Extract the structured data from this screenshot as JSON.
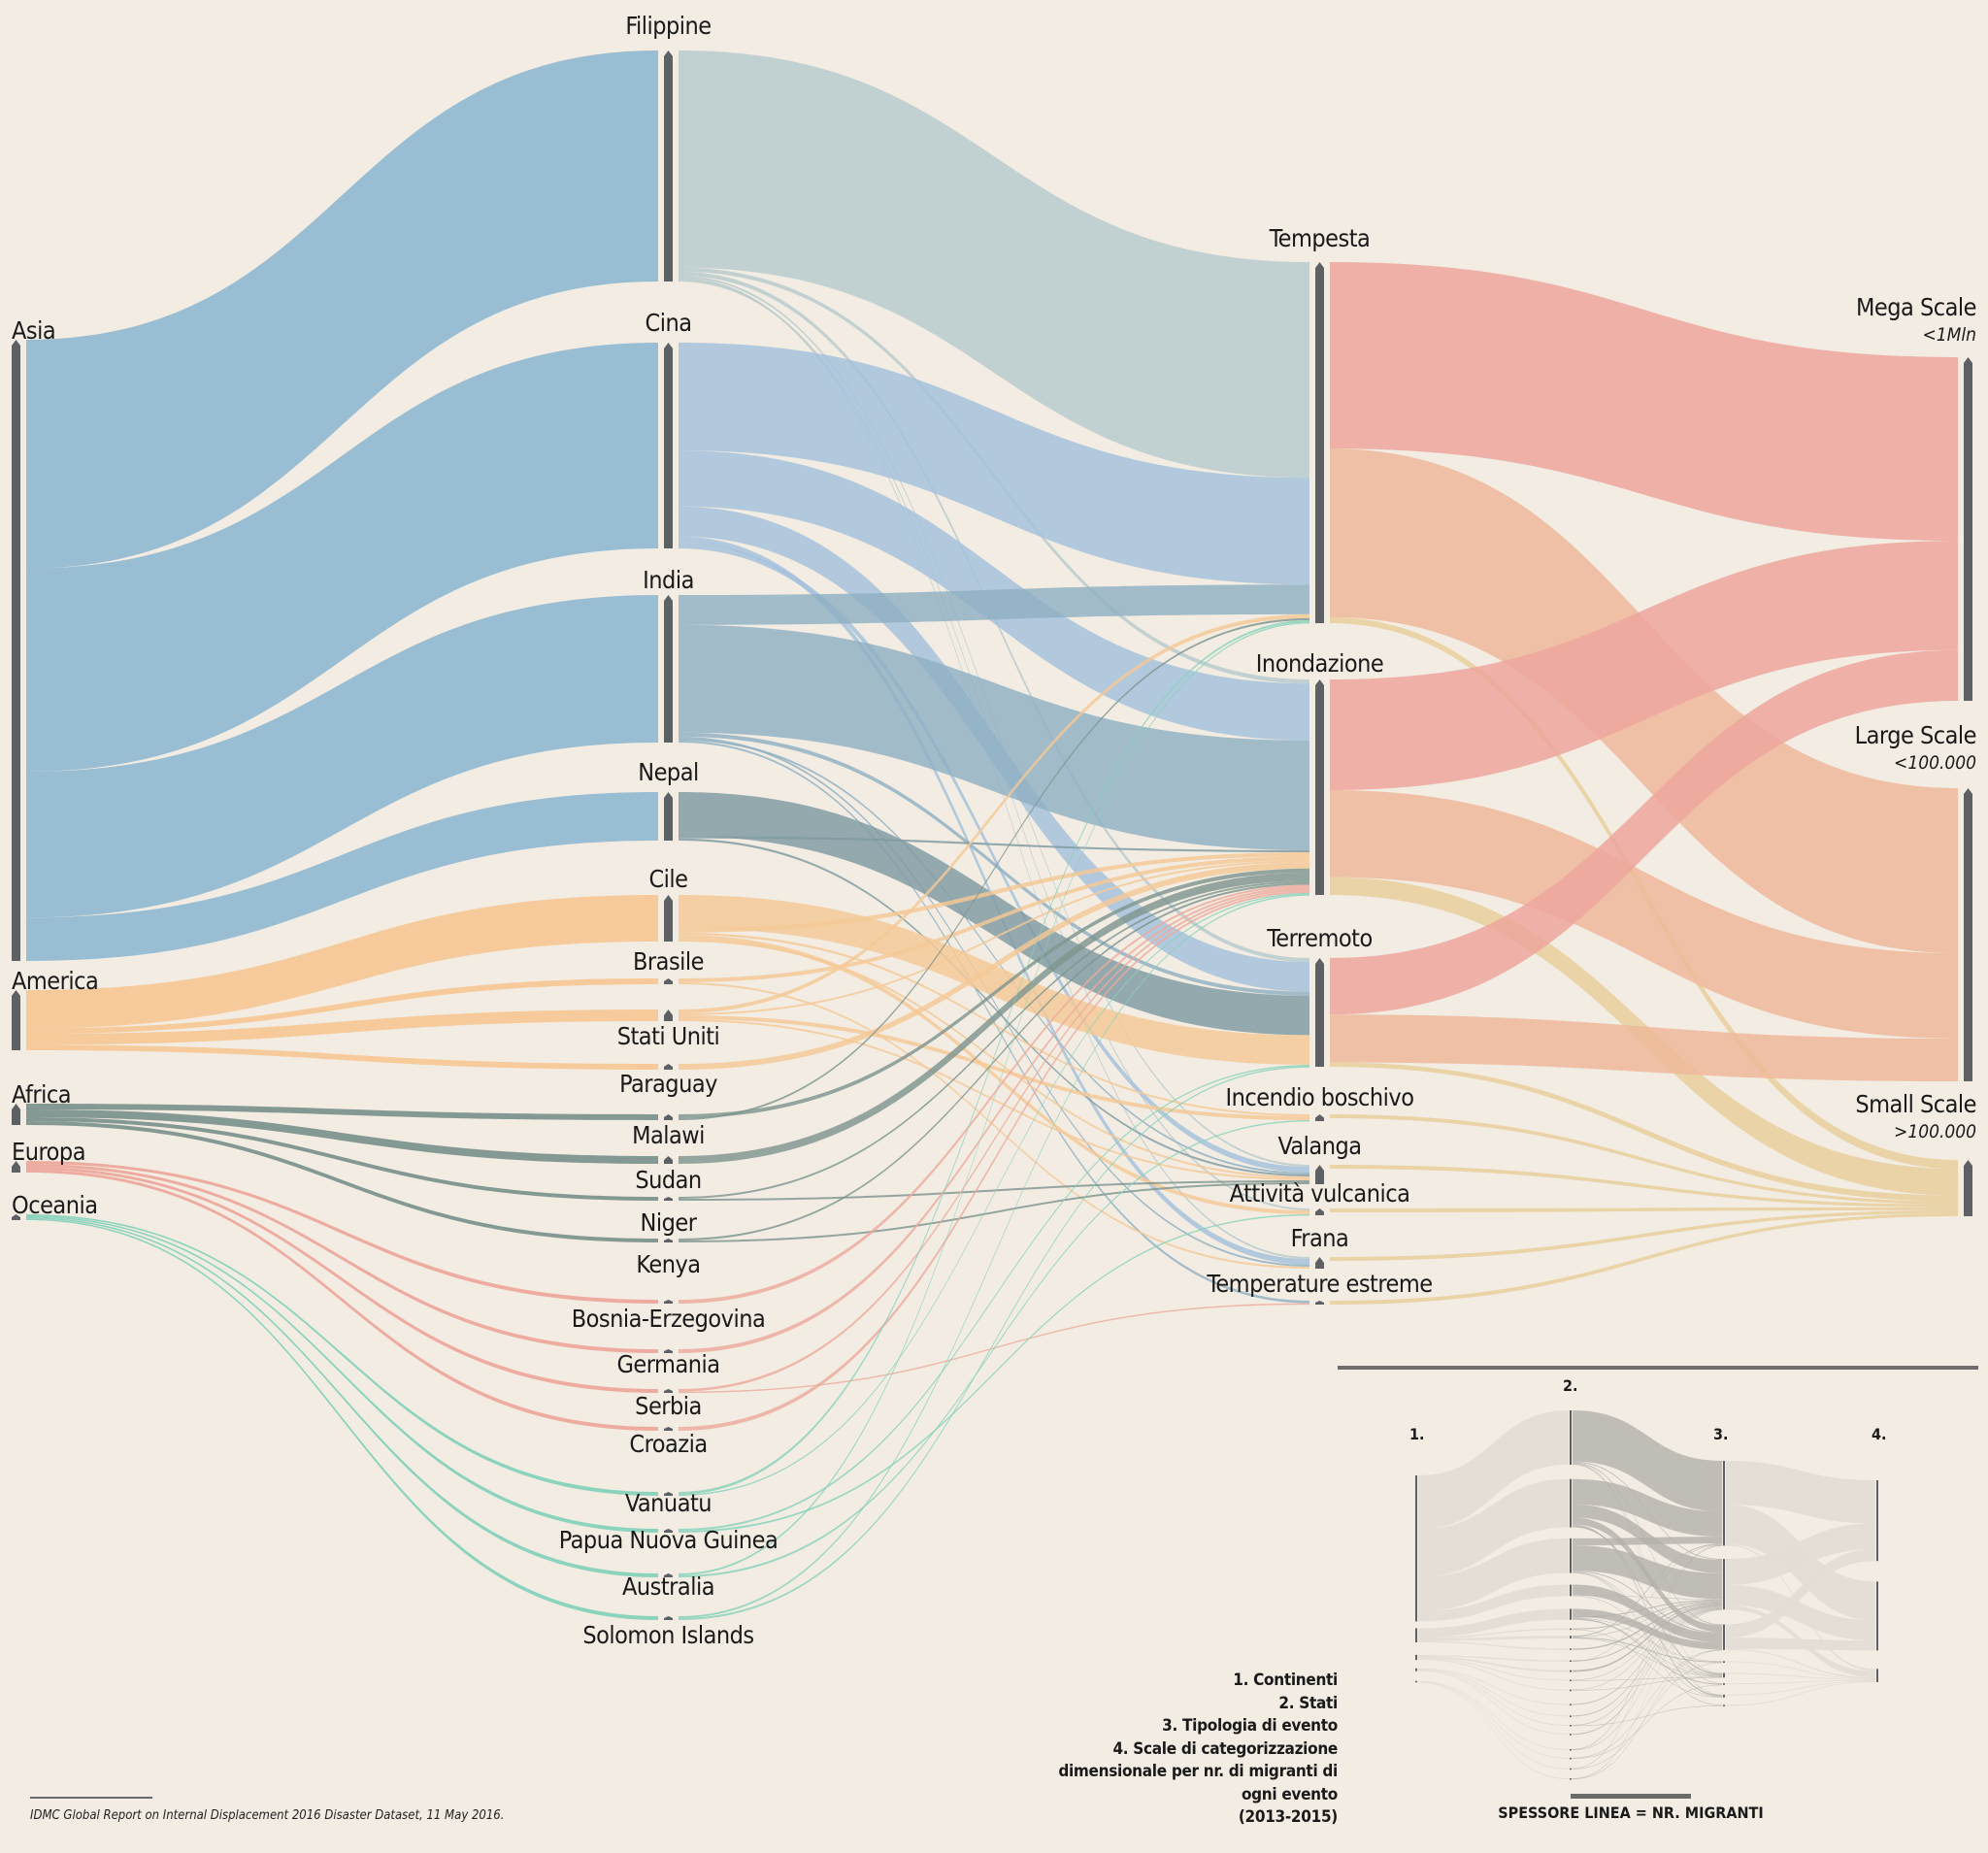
{
  "colors": {
    "background": "#f2ece2",
    "node": "#5e6163",
    "asia": "#93bad1",
    "america": "#f5c896",
    "africa": "#7e958f",
    "europa": "#eda99c",
    "oceania": "#86d2bb",
    "tempesta_flow": "#b6c9cc",
    "cina_flow": "#a3c1dc",
    "india_flow": "#8fb0c3",
    "nepal_flow": "#7f9aa2",
    "mega": "#eda69c",
    "large": "#eeb99a",
    "small": "#e8cf9c",
    "legend_light": "#e3ddd5",
    "legend_dark": "#b3b0ab"
  },
  "chart_data": {
    "type": "sankey",
    "title": "",
    "units": "migranti (spessore linea)",
    "columns": [
      "Continenti",
      "Stati",
      "Tipologia di evento",
      "Scale"
    ],
    "nodes": {
      "continents": [
        "Asia",
        "America",
        "Africa",
        "Europa",
        "Oceania"
      ],
      "countries": [
        "Filippine",
        "Cina",
        "India",
        "Nepal",
        "Cile",
        "Brasile",
        "Stati Uniti",
        "Paraguay",
        "Malawi",
        "Sudan",
        "Niger",
        "Kenya",
        "Bosnia-Erzegovina",
        "Germania",
        "Serbia",
        "Croazia",
        "Vanuatu",
        "Papua Nuova Guinea",
        "Australia",
        "Solomon Islands"
      ],
      "events": [
        "Tempesta",
        "Inondazione",
        "Terremoto",
        "Incendio boschivo",
        "Valanga",
        "Attività vulcanica",
        "Frana",
        "Temperature estreme"
      ],
      "scales": [
        {
          "name": "Mega Scale",
          "note": "<1Mln"
        },
        {
          "name": "Large Scale",
          "note": "<100.000"
        },
        {
          "name": "Small Scale",
          "note": ">100.000"
        }
      ]
    },
    "links_continent_country": [
      {
        "source": "Asia",
        "target": "Filippine",
        "value": 232
      },
      {
        "source": "Asia",
        "target": "Cina",
        "value": 206
      },
      {
        "source": "Asia",
        "target": "India",
        "value": 148
      },
      {
        "source": "Asia",
        "target": "Nepal",
        "value": 44
      },
      {
        "source": "America",
        "target": "Cile",
        "value": 42
      },
      {
        "source": "America",
        "target": "Brasile",
        "value": 6
      },
      {
        "source": "America",
        "target": "Stati Uniti",
        "value": 12
      },
      {
        "source": "America",
        "target": "Paraguay",
        "value": 6
      },
      {
        "source": "Africa",
        "target": "Malawi",
        "value": 6
      },
      {
        "source": "Africa",
        "target": "Sudan",
        "value": 8
      },
      {
        "source": "Africa",
        "target": "Niger",
        "value": 4
      },
      {
        "source": "Africa",
        "target": "Kenya",
        "value": 4
      },
      {
        "source": "Europa",
        "target": "Bosnia-Erzegovina",
        "value": 2
      },
      {
        "source": "Europa",
        "target": "Germania",
        "value": 2
      },
      {
        "source": "Europa",
        "target": "Serbia",
        "value": 2
      },
      {
        "source": "Europa",
        "target": "Croazia",
        "value": 2
      },
      {
        "source": "Oceania",
        "target": "Vanuatu",
        "value": 2
      },
      {
        "source": "Oceania",
        "target": "Papua Nuova Guinea",
        "value": 2
      },
      {
        "source": "Oceania",
        "target": "Australia",
        "value": 2
      },
      {
        "source": "Oceania",
        "target": "Solomon Islands",
        "value": 2
      }
    ],
    "links_country_event": [
      {
        "source": "Filippine",
        "target": "Tempesta",
        "value": 218
      },
      {
        "source": "Filippine",
        "target": "Inondazione",
        "value": 4
      },
      {
        "source": "Filippine",
        "target": "Terremoto",
        "value": 4
      },
      {
        "source": "Filippine",
        "target": "Valanga",
        "value": 2
      },
      {
        "source": "Filippine",
        "target": "Frana",
        "value": 2
      },
      {
        "source": "Filippine",
        "target": "Attività vulcanica",
        "value": 2
      },
      {
        "source": "Cina",
        "target": "Tempesta",
        "value": 108
      },
      {
        "source": "Cina",
        "target": "Inondazione",
        "value": 56
      },
      {
        "source": "Cina",
        "target": "Terremoto",
        "value": 30
      },
      {
        "source": "Cina",
        "target": "Frana",
        "value": 6
      },
      {
        "source": "Cina",
        "target": "Valanga",
        "value": 6
      },
      {
        "source": "India",
        "target": "Tempesta",
        "value": 30
      },
      {
        "source": "India",
        "target": "Inondazione",
        "value": 108
      },
      {
        "source": "India",
        "target": "Terremoto",
        "value": 4
      },
      {
        "source": "India",
        "target": "Frana",
        "value": 2
      },
      {
        "source": "India",
        "target": "Valanga",
        "value": 2
      },
      {
        "source": "India",
        "target": "Temperature estreme",
        "value": 2
      },
      {
        "source": "Nepal",
        "target": "Terremoto",
        "value": 40
      },
      {
        "source": "Nepal",
        "target": "Inondazione",
        "value": 2
      },
      {
        "source": "Nepal",
        "target": "Valanga",
        "value": 2
      },
      {
        "source": "Cile",
        "target": "Terremoto",
        "value": 30
      },
      {
        "source": "Cile",
        "target": "Inondazione",
        "value": 4
      },
      {
        "source": "Cile",
        "target": "Incendio boschivo",
        "value": 2
      },
      {
        "source": "Cile",
        "target": "Attività vulcanica",
        "value": 4
      },
      {
        "source": "Cile",
        "target": "Valanga",
        "value": 2
      },
      {
        "source": "Brasile",
        "target": "Inondazione",
        "value": 4
      },
      {
        "source": "Brasile",
        "target": "Frana",
        "value": 2
      },
      {
        "source": "Stati Uniti",
        "target": "Tempesta",
        "value": 4
      },
      {
        "source": "Stati Uniti",
        "target": "Inondazione",
        "value": 2
      },
      {
        "source": "Stati Uniti",
        "target": "Incendio boschivo",
        "value": 4
      },
      {
        "source": "Stati Uniti",
        "target": "Valanga",
        "value": 2
      },
      {
        "source": "Paraguay",
        "target": "Inondazione",
        "value": 6
      },
      {
        "source": "Malawi",
        "target": "Inondazione",
        "value": 4
      },
      {
        "source": "Malawi",
        "target": "Tempesta",
        "value": 2
      },
      {
        "source": "Sudan",
        "target": "Inondazione",
        "value": 8
      },
      {
        "source": "Niger",
        "target": "Inondazione",
        "value": 2
      },
      {
        "source": "Niger",
        "target": "Valanga",
        "value": 2
      },
      {
        "source": "Kenya",
        "target": "Inondazione",
        "value": 2
      },
      {
        "source": "Kenya",
        "target": "Valanga",
        "value": 2
      },
      {
        "source": "Bosnia-Erzegovina",
        "target": "Inondazione",
        "value": 2
      },
      {
        "source": "Germania",
        "target": "Inondazione",
        "value": 2
      },
      {
        "source": "Serbia",
        "target": "Inondazione",
        "value": 2
      },
      {
        "source": "Serbia",
        "target": "Temperature estreme",
        "value": 1
      },
      {
        "source": "Croazia",
        "target": "Inondazione",
        "value": 2
      },
      {
        "source": "Vanuatu",
        "target": "Tempesta",
        "value": 2
      },
      {
        "source": "Vanuatu",
        "target": "Inondazione",
        "value": 1
      },
      {
        "source": "Papua Nuova Guinea",
        "target": "Terremoto",
        "value": 1
      },
      {
        "source": "Papua Nuova Guinea",
        "target": "Attività vulcanica",
        "value": 1
      },
      {
        "source": "Australia",
        "target": "Tempesta",
        "value": 1
      },
      {
        "source": "Australia",
        "target": "Incendio boschivo",
        "value": 1
      },
      {
        "source": "Solomon Islands",
        "target": "Inondazione",
        "value": 1
      },
      {
        "source": "Solomon Islands",
        "target": "Terremoto",
        "value": 1
      }
    ],
    "links_event_scale": [
      {
        "source": "Tempesta",
        "target": "Mega Scale",
        "value": 188
      },
      {
        "source": "Tempesta",
        "target": "Large Scale",
        "value": 170
      },
      {
        "source": "Tempesta",
        "target": "Small Scale",
        "value": 6
      },
      {
        "source": "Inondazione",
        "target": "Mega Scale",
        "value": 112
      },
      {
        "source": "Inondazione",
        "target": "Large Scale",
        "value": 88
      },
      {
        "source": "Inondazione",
        "target": "Small Scale",
        "value": 18
      },
      {
        "source": "Terremoto",
        "target": "Mega Scale",
        "value": 52
      },
      {
        "source": "Terremoto",
        "target": "Large Scale",
        "value": 44
      },
      {
        "source": "Terremoto",
        "target": "Small Scale",
        "value": 4
      },
      {
        "source": "Incendio boschivo",
        "target": "Small Scale",
        "value": 2
      },
      {
        "source": "Valanga",
        "target": "Small Scale",
        "value": 2
      },
      {
        "source": "Attività vulcanica",
        "target": "Small Scale",
        "value": 2
      },
      {
        "source": "Frana",
        "target": "Small Scale",
        "value": 2
      },
      {
        "source": "Temperature estreme",
        "target": "Small Scale",
        "value": 2
      }
    ]
  },
  "legend": {
    "columns": [
      "1.",
      "2.",
      "3.",
      "4."
    ],
    "caption": "SPESSORE LINEA = NR. MIGRANTI",
    "notes": [
      "1. Continenti",
      "2. Stati",
      "3. Tipologia di evento",
      "4. Scale di categorizzazione",
      "dimensionale per nr. di migranti di",
      "ogni evento",
      "(2013-2015)"
    ]
  },
  "source": "IDMC Global Report on Internal Displacement 2016 Disaster Dataset, 11 May 2016."
}
